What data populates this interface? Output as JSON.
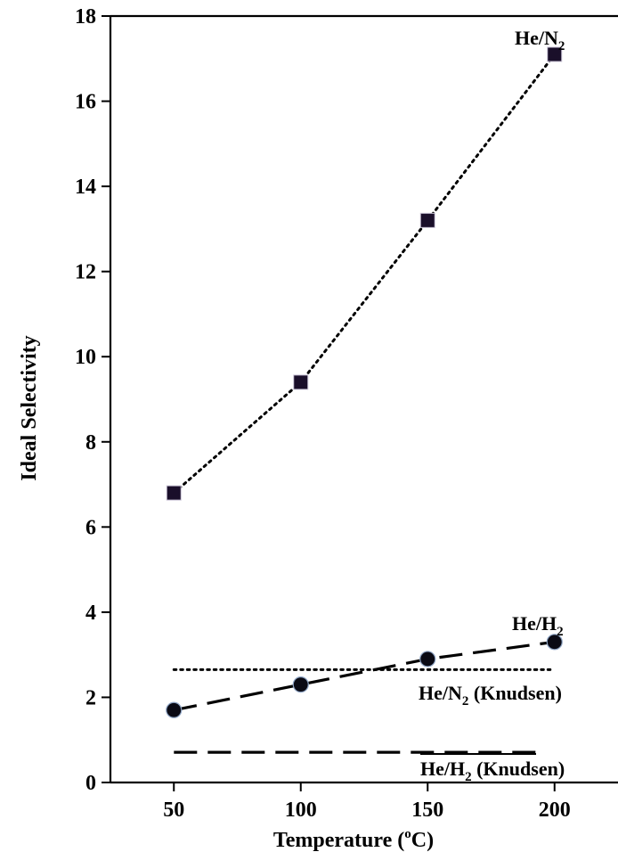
{
  "chart_data": {
    "type": "line",
    "xlabel": "Temperature (°C)",
    "xlabel_parts": {
      "main": "Temperature (",
      "sup": "o",
      "tail": "C)"
    },
    "ylabel": "Ideal Selectivity",
    "xlim": [
      25,
      225
    ],
    "ylim": [
      0,
      18
    ],
    "xticks": [
      50,
      100,
      150,
      200
    ],
    "yticks": [
      0,
      2,
      4,
      6,
      8,
      10,
      12,
      14,
      16,
      18
    ],
    "grid": false,
    "series": [
      {
        "name": "He/N2",
        "label_parts": {
          "main": "He/N",
          "sub": "2",
          "tail": ""
        },
        "x": [
          50,
          100,
          150,
          200
        ],
        "y": [
          6.8,
          9.4,
          13.2,
          17.1
        ],
        "marker": "square",
        "line": "dotted",
        "color": "#000000"
      },
      {
        "name": "He/H2",
        "label_parts": {
          "main": "He/H",
          "sub": "2",
          "tail": ""
        },
        "x": [
          50,
          100,
          150,
          200
        ],
        "y": [
          1.7,
          2.3,
          2.9,
          3.3
        ],
        "marker": "circle",
        "line": "dashed",
        "color": "#000000"
      },
      {
        "name": "He/N2 (Knudsen)",
        "label_parts": {
          "main": "He/N",
          "sub": "2",
          "tail": " (Knudsen)"
        },
        "x": [
          50,
          200
        ],
        "y": [
          2.65,
          2.65
        ],
        "marker": "none",
        "line": "dotted",
        "color": "#000000"
      },
      {
        "name": "He/H2 (Knudsen)",
        "label_parts": {
          "main": "He/H",
          "sub": "2",
          "tail": " (Knudsen)"
        },
        "x": [
          50,
          200
        ],
        "y": [
          0.71,
          0.71
        ],
        "marker": "none",
        "line": "dashed",
        "color": "#000000"
      }
    ]
  }
}
